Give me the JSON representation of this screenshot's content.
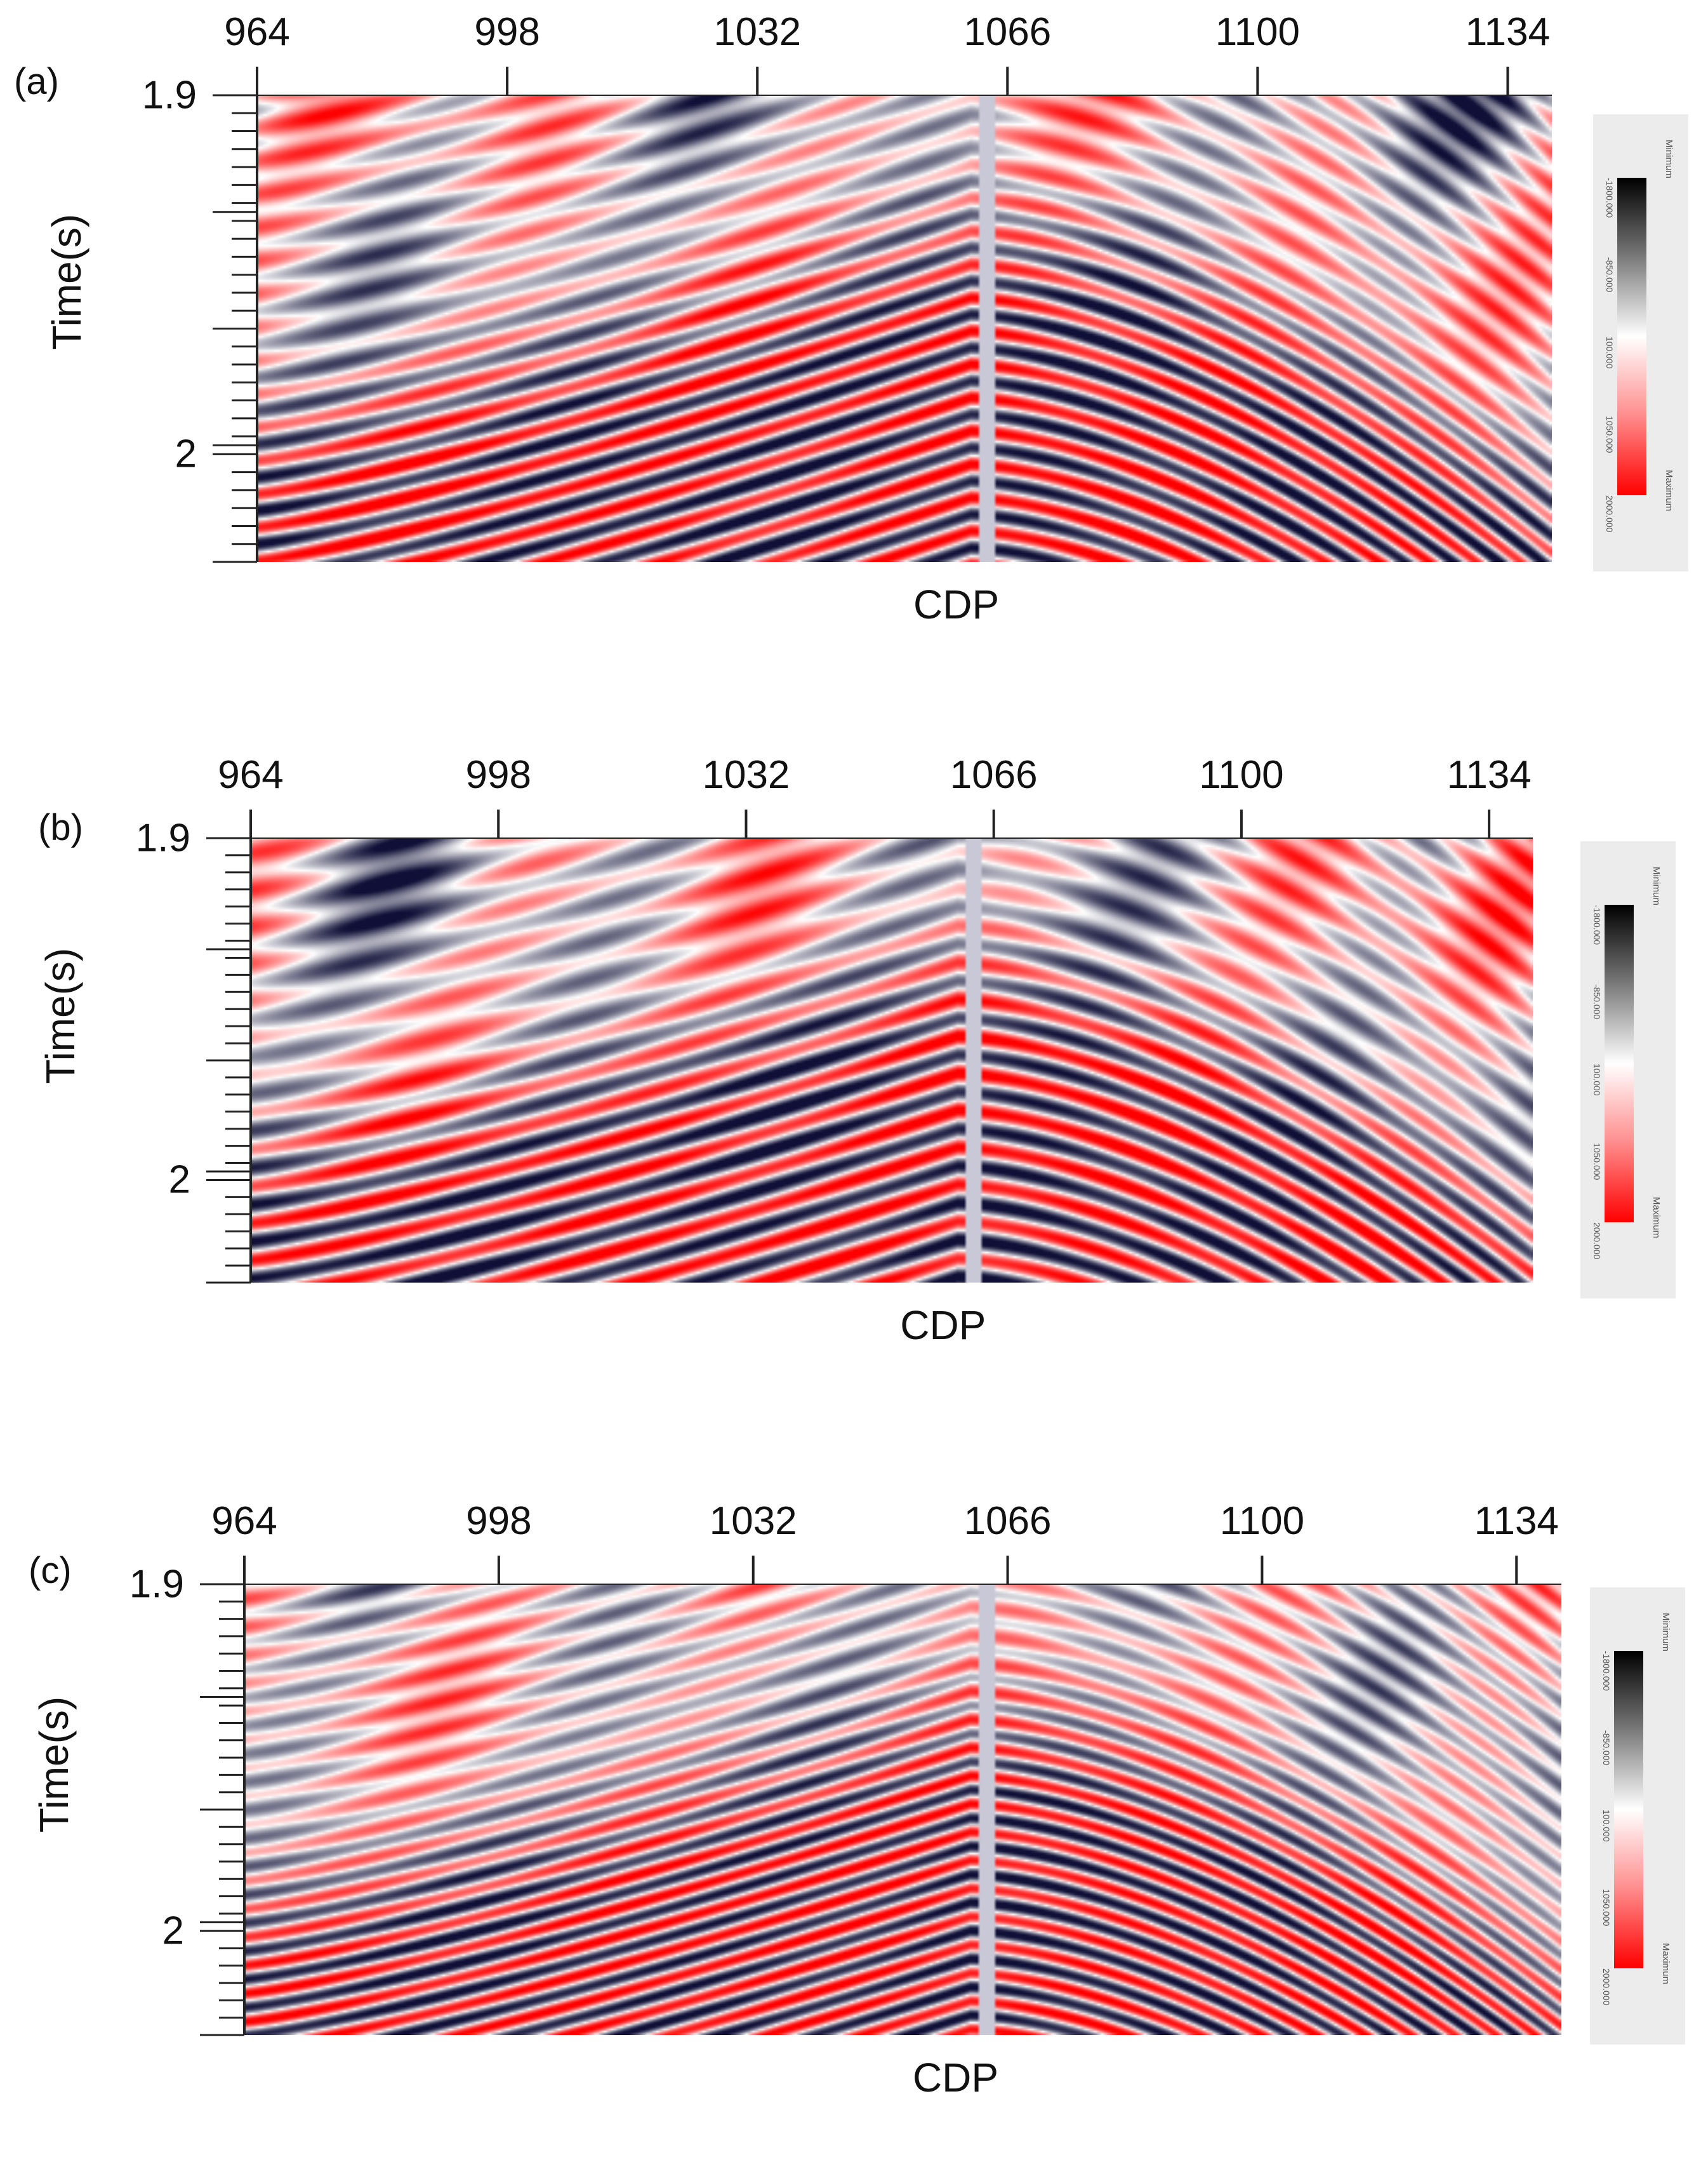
{
  "figure": {
    "panels": [
      {
        "tag": "(a)",
        "xlabel": "CDP",
        "ylabel": "Time(s)"
      },
      {
        "tag": "(b)",
        "xlabel": "CDP",
        "ylabel": "Time(s)"
      },
      {
        "tag": "(c)",
        "xlabel": "CDP",
        "ylabel": "Time(s)"
      }
    ]
  },
  "colorbar": {
    "top_label": "Minimum",
    "bottom_label": "Maximum",
    "ticks": [
      "-1800.000",
      "-850.000",
      "100.000",
      "1050.000",
      "2000.000"
    ],
    "colors": [
      "#000000",
      "#7a7a7a",
      "#ffffff",
      "#ff8c8c",
      "#ff0000"
    ]
  },
  "chart_data": [
    {
      "type": "heatmap",
      "title": "(a)",
      "xlabel": "CDP",
      "ylabel": "Time(s)",
      "x_ticks": [
        964,
        998,
        1032,
        1066,
        1100,
        1134
      ],
      "x_tick_labels": [
        "964",
        "998",
        "1032",
        "1066",
        "1100",
        "1134"
      ],
      "xlim": [
        964,
        1140
      ],
      "y_ticks": [
        1.9,
        2
      ],
      "y_tick_labels": [
        "1.9",
        "2"
      ],
      "ylim": [
        1.9,
        2.03
      ],
      "gap_cdp": 1066,
      "colormap": "black-white-red",
      "value_range": [
        -1800,
        2000
      ]
    },
    {
      "type": "heatmap",
      "title": "(b)",
      "xlabel": "CDP",
      "ylabel": "Time(s)",
      "x_ticks": [
        964,
        998,
        1032,
        1066,
        1100,
        1134
      ],
      "x_tick_labels": [
        "964",
        "998",
        "1032",
        "1066",
        "1100",
        "1134"
      ],
      "xlim": [
        964,
        1140
      ],
      "y_ticks": [
        1.9,
        2
      ],
      "y_tick_labels": [
        "1.9",
        "2"
      ],
      "ylim": [
        1.9,
        2.03
      ],
      "gap_cdp": 1066,
      "colormap": "black-white-red",
      "value_range": [
        -1800,
        2000
      ]
    },
    {
      "type": "heatmap",
      "title": "(c)",
      "xlabel": "CDP",
      "ylabel": "Time(s)",
      "x_ticks": [
        964,
        998,
        1032,
        1066,
        1100,
        1134
      ],
      "x_tick_labels": [
        "964",
        "998",
        "1032",
        "1066",
        "1100",
        "1134"
      ],
      "xlim": [
        964,
        1140
      ],
      "y_ticks": [
        1.9,
        2
      ],
      "y_tick_labels": [
        "1.9",
        "2"
      ],
      "ylim": [
        1.9,
        2.03
      ],
      "gap_cdp": 1066,
      "colormap": "black-white-red",
      "value_range": [
        -1800,
        2000
      ]
    }
  ]
}
